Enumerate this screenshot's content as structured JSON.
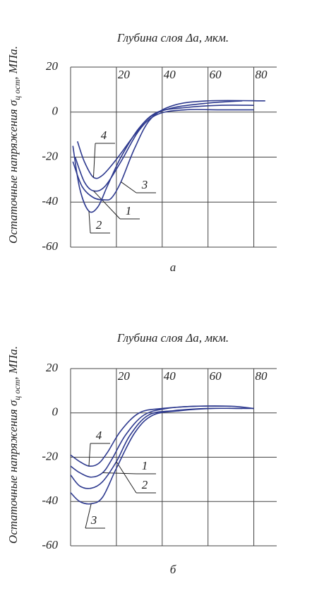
{
  "chart_data": [
    {
      "type": "line",
      "title": "Глубина слоя Δa, мкм.",
      "ylabel": [
        "Остаточные напряжения σ",
        "ц ост",
        ", МПа."
      ],
      "caption": "а",
      "xlim": [
        0,
        90
      ],
      "ylim": [
        -60,
        20
      ],
      "xticks": [
        20,
        40,
        60,
        80
      ],
      "yticks": [
        -60,
        -40,
        -20,
        0,
        20
      ],
      "grid": true,
      "series": [
        {
          "name": "1",
          "color": "#2e3a8f",
          "x": [
            2,
            6,
            10,
            15,
            22,
            30,
            38,
            50,
            65,
            80
          ],
          "values": [
            -20,
            -31,
            -35,
            -33,
            -22,
            -8,
            -1,
            1,
            1,
            1
          ]
        },
        {
          "name": "2",
          "color": "#2e3a8f",
          "x": [
            1,
            4,
            8,
            12,
            16,
            22,
            30,
            38,
            50,
            65,
            80
          ],
          "values": [
            -15,
            -34,
            -44,
            -42,
            -33,
            -20,
            -7,
            0,
            2,
            3,
            3
          ]
        },
        {
          "name": "3",
          "color": "#2e3a8f",
          "x": [
            1,
            5,
            10,
            15,
            18,
            22,
            28,
            35,
            45,
            60,
            85
          ],
          "values": [
            -22,
            -33,
            -38,
            -39,
            -38,
            -31,
            -16,
            -3,
            3,
            5,
            5
          ]
        },
        {
          "name": "4",
          "color": "#2e3a8f",
          "x": [
            3,
            6,
            10,
            14,
            20,
            28,
            35,
            45,
            60,
            75
          ],
          "values": [
            -13,
            -22,
            -29,
            -28,
            -21,
            -10,
            -2,
            2,
            4,
            5
          ]
        }
      ]
    },
    {
      "type": "line",
      "title": "Глубина слоя Δa, мкм.",
      "ylabel": [
        "Остаточные напряжения σ",
        "ц ост",
        ", МПа."
      ],
      "caption": "б",
      "xlim": [
        0,
        90
      ],
      "ylim": [
        -60,
        20
      ],
      "xticks": [
        20,
        40,
        60,
        80
      ],
      "yticks": [
        -60,
        -40,
        -20,
        0,
        20
      ],
      "grid": true,
      "series": [
        {
          "name": "1",
          "color": "#2e3a8f",
          "x": [
            0,
            4,
            9,
            14,
            18,
            24,
            32,
            42,
            55,
            70,
            80
          ],
          "values": [
            -24,
            -27,
            -29,
            -27,
            -21,
            -10,
            -1,
            2,
            3,
            3,
            2
          ]
        },
        {
          "name": "2",
          "color": "#2e3a8f",
          "x": [
            0,
            4,
            9,
            14,
            20,
            26,
            34,
            45,
            60,
            75
          ],
          "values": [
            -28,
            -33,
            -34,
            -31,
            -22,
            -10,
            -1,
            1,
            2,
            2
          ]
        },
        {
          "name": "3",
          "color": "#2e3a8f",
          "x": [
            0,
            4,
            9,
            14,
            20,
            28,
            36,
            48,
            62,
            80
          ],
          "values": [
            -36,
            -40,
            -41,
            -38,
            -25,
            -9,
            -1,
            1,
            2,
            2
          ]
        },
        {
          "name": "4",
          "color": "#2e3a8f",
          "x": [
            0,
            4,
            8,
            12,
            16,
            22,
            30,
            40,
            55,
            70
          ],
          "values": [
            -19,
            -22,
            -24,
            -23,
            -18,
            -8,
            0,
            2,
            3,
            3
          ]
        }
      ]
    }
  ]
}
